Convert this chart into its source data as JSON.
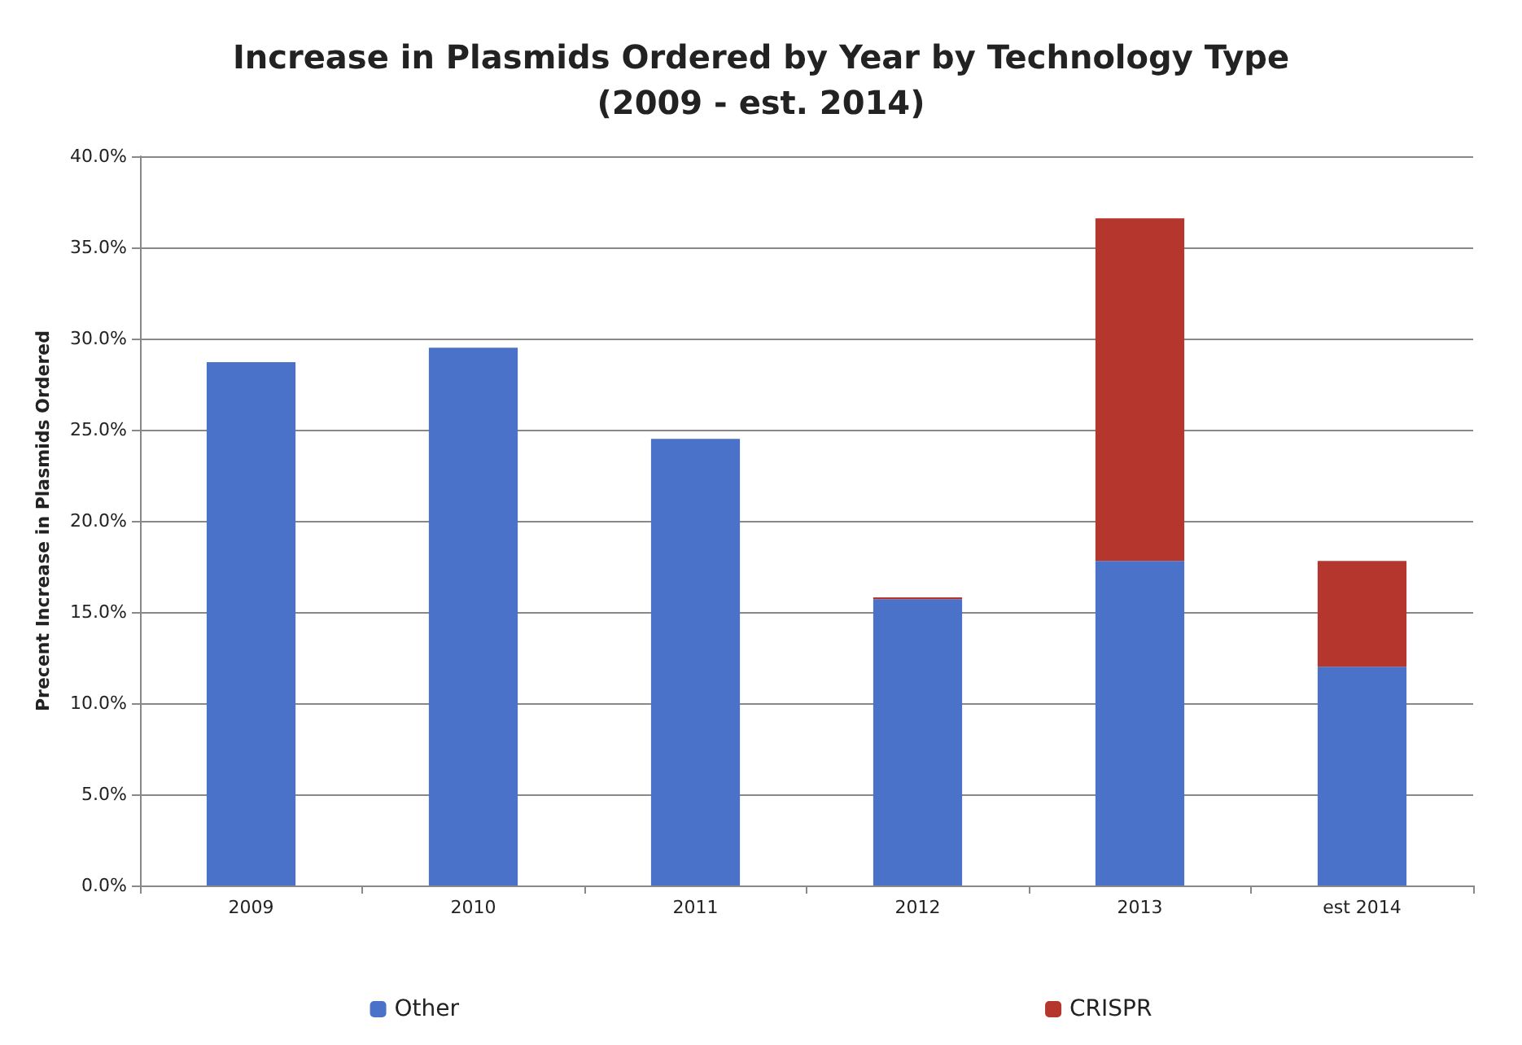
{
  "chart_data": {
    "type": "bar",
    "title": "Increase in Plasmids Ordered by Year by Technology Type\n(2009 - est. 2014)",
    "ylabel": "Precent Increase in Plasmids Ordered",
    "categories": [
      "2009",
      "2010",
      "2011",
      "2012",
      "2013",
      "est 2014"
    ],
    "stacked": true,
    "series": [
      {
        "name": "Other",
        "color": "#4a72c8",
        "values": [
          28.7,
          29.5,
          24.5,
          15.7,
          17.8,
          12.0
        ]
      },
      {
        "name": "CRISPR",
        "color": "#b5362d",
        "values": [
          null,
          null,
          null,
          0.1,
          18.8,
          5.8
        ]
      }
    ],
    "ylim": [
      0,
      40
    ],
    "yticks": [
      {
        "value": 0,
        "label": "0.0%"
      },
      {
        "value": 5,
        "label": "5.0%"
      },
      {
        "value": 10,
        "label": "10.0%"
      },
      {
        "value": 15,
        "label": "15.0%"
      },
      {
        "value": 20,
        "label": "20.0%"
      },
      {
        "value": 25,
        "label": "25.0%"
      },
      {
        "value": 30,
        "label": "30.0%"
      },
      {
        "value": 35,
        "label": "35.0%"
      },
      {
        "value": 40,
        "label": "40.0%"
      }
    ],
    "grid": "y",
    "legend": "bottom"
  }
}
